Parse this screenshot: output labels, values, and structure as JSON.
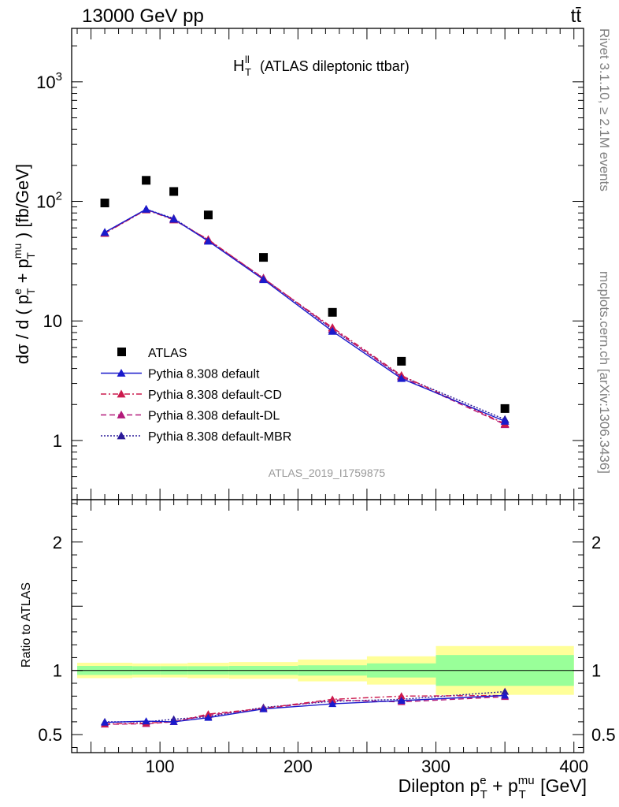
{
  "header": {
    "left_label": "13000 GeV pp",
    "right_label": "tt̄"
  },
  "side_labels": {
    "rivet": "Rivet 3.1.10, ≥ 2.1M events",
    "mcplots": "mcplots.cern.ch [arXiv:1306.3436]"
  },
  "chart_data": [
    {
      "type": "scatter",
      "panel": "main",
      "title": "(ATLAS dileptonic ttbar)",
      "title_symbol": "H",
      "title_symbol_sup": "ll",
      "title_symbol_sub": "T",
      "ylabel": "dσ / d ( p_T^e + p_T^mu ) [fb/GeV]",
      "ylabel_parts": {
        "prefix": "dσ / d ( p",
        "sub1": "T",
        "sup1": "e",
        "mid": " + p",
        "sub2": "T",
        "sup2": "mu",
        "suffix": " ) [fb/GeV]"
      },
      "yscale": "log",
      "ylim": [
        0.32,
        2800
      ],
      "xlim": [
        36,
        407
      ],
      "y_tick_labels": [
        {
          "value": 1,
          "label": "1"
        },
        {
          "value": 10,
          "label": "10"
        },
        {
          "value": 100,
          "label": "10",
          "sup": "2"
        },
        {
          "value": 1000,
          "label": "10",
          "sup": "3"
        }
      ],
      "watermark": "ATLAS_2019_I1759875",
      "legend_position": "lower-left",
      "series": [
        {
          "name": "ATLAS",
          "style": "data",
          "color": "#000000",
          "x": [
            60,
            90,
            110,
            135,
            175,
            225,
            275,
            350
          ],
          "y": [
            97,
            150,
            121,
            77,
            34,
            11.8,
            4.6,
            1.85
          ]
        },
        {
          "name": "Pythia 8.308 default",
          "style": "solid",
          "color": "#1a1acc",
          "x": [
            60,
            90,
            110,
            135,
            175,
            225,
            275,
            350
          ],
          "y": [
            55,
            86,
            71,
            46.5,
            22.2,
            8.2,
            3.3,
            1.45
          ]
        },
        {
          "name": "Pythia 8.308 default-CD",
          "style": "dashdot",
          "color": "#cc1a4d",
          "x": [
            60,
            90,
            110,
            135,
            175,
            225,
            275,
            350
          ],
          "y": [
            54,
            85,
            70,
            48,
            22.6,
            8.8,
            3.5,
            1.38
          ]
        },
        {
          "name": "Pythia 8.308 default-DL",
          "style": "dashed",
          "color": "#b31a7a",
          "x": [
            60,
            90,
            110,
            135,
            175,
            225,
            275,
            350
          ],
          "y": [
            54.5,
            85.5,
            71,
            47.5,
            22.8,
            8.6,
            3.4,
            1.36
          ]
        },
        {
          "name": "Pythia 8.308 default-MBR",
          "style": "dotted",
          "color": "#2a1a99",
          "x": [
            60,
            90,
            110,
            135,
            175,
            225,
            275,
            350
          ],
          "y": [
            55,
            86,
            72,
            47,
            22.8,
            8.5,
            3.45,
            1.5
          ]
        }
      ]
    },
    {
      "type": "line",
      "panel": "ratio",
      "ylabel": "Ratio to ATLAS",
      "ylim": [
        0.36,
        2.33
      ],
      "xlim": [
        36,
        407
      ],
      "xlabel": "Dilepton p_T^e + p_T^mu [GeV]",
      "xlabel_parts": {
        "prefix": "Dilepton p",
        "sub1": "T",
        "sup1": "e",
        "mid": " + p",
        "sub2": "T",
        "sup2": "mu",
        "suffix": " [GeV]"
      },
      "x_ticks": [
        100,
        200,
        300,
        400
      ],
      "y_ticks": [
        0.5,
        1,
        2
      ],
      "bands": {
        "bin_edges": [
          40,
          80,
          100,
          120,
          150,
          200,
          250,
          300,
          400
        ],
        "stat_halfwidth": [
          0.035,
          0.033,
          0.033,
          0.033,
          0.035,
          0.04,
          0.055,
          0.12
        ],
        "total_halfwidth": [
          0.06,
          0.055,
          0.055,
          0.06,
          0.065,
          0.085,
          0.11,
          0.19
        ],
        "stat_color": "#99ff99",
        "total_color": "#ffff99"
      },
      "series": [
        {
          "name": "Pythia 8.308 default",
          "style": "solid",
          "color": "#1a1acc",
          "x": [
            60,
            90,
            110,
            135,
            175,
            225,
            275,
            350
          ],
          "y": [
            0.595,
            0.605,
            0.6,
            0.632,
            0.7,
            0.74,
            0.765,
            0.805
          ]
        },
        {
          "name": "Pythia 8.308 default-CD",
          "style": "dashdot",
          "color": "#cc1a4d",
          "x": [
            60,
            90,
            110,
            135,
            175,
            225,
            275,
            350
          ],
          "y": [
            0.583,
            0.59,
            0.6,
            0.66,
            0.705,
            0.775,
            0.8,
            0.805
          ]
        },
        {
          "name": "Pythia 8.308 default-DL",
          "style": "dashed",
          "color": "#b31a7a",
          "x": [
            60,
            90,
            110,
            135,
            175,
            225,
            275,
            350
          ],
          "y": [
            0.58,
            0.585,
            0.6,
            0.652,
            0.7,
            0.77,
            0.755,
            0.795
          ]
        },
        {
          "name": "Pythia 8.308 default-MBR",
          "style": "dotted",
          "color": "#2a1a99",
          "x": [
            60,
            90,
            110,
            135,
            175,
            225,
            275,
            350
          ],
          "y": [
            0.6,
            0.6,
            0.62,
            0.64,
            0.712,
            0.76,
            0.775,
            0.835
          ]
        }
      ]
    }
  ]
}
